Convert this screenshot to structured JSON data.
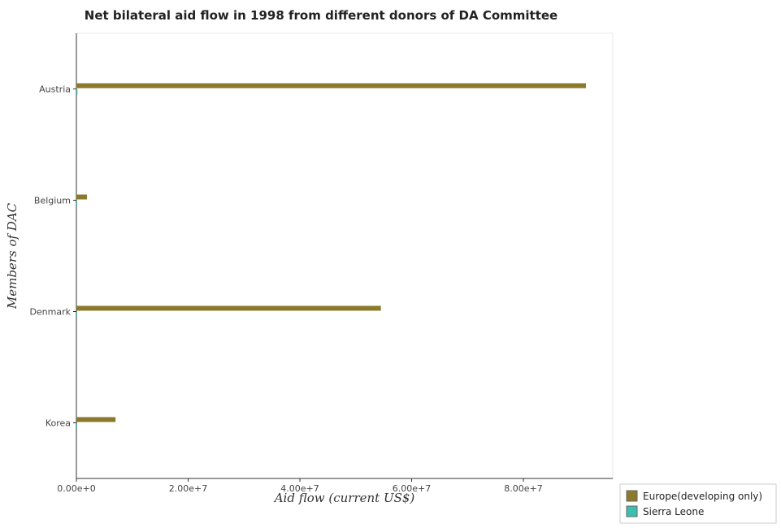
{
  "chart_data": {
    "type": "bar",
    "orientation": "horizontal",
    "title": "Net bilateral aid flow in 1998 from different donors of DA Committee",
    "xlabel": "Aid flow (current US$)",
    "ylabel": "Members of DAC",
    "categories": [
      "Austria",
      "Belgium",
      "Denmark",
      "Korea"
    ],
    "series": [
      {
        "name": "Europe(developing only)",
        "color": "#8b7a2b",
        "values": [
          91200000,
          1900000,
          54500000,
          7000000
        ]
      },
      {
        "name": "Sierra Leone",
        "color": "#3cbfae",
        "values": [
          200000,
          150000,
          80000,
          50000
        ]
      }
    ],
    "xlim": [
      0,
      96000000
    ],
    "xticks": [
      0,
      20000000,
      40000000,
      60000000,
      80000000
    ],
    "xtick_labels": [
      "0.00e+0",
      "2.00e+7",
      "4.00e+7",
      "6.00e+7",
      "8.00e+7"
    ],
    "grid": false,
    "legend_position": "bottom-right"
  }
}
